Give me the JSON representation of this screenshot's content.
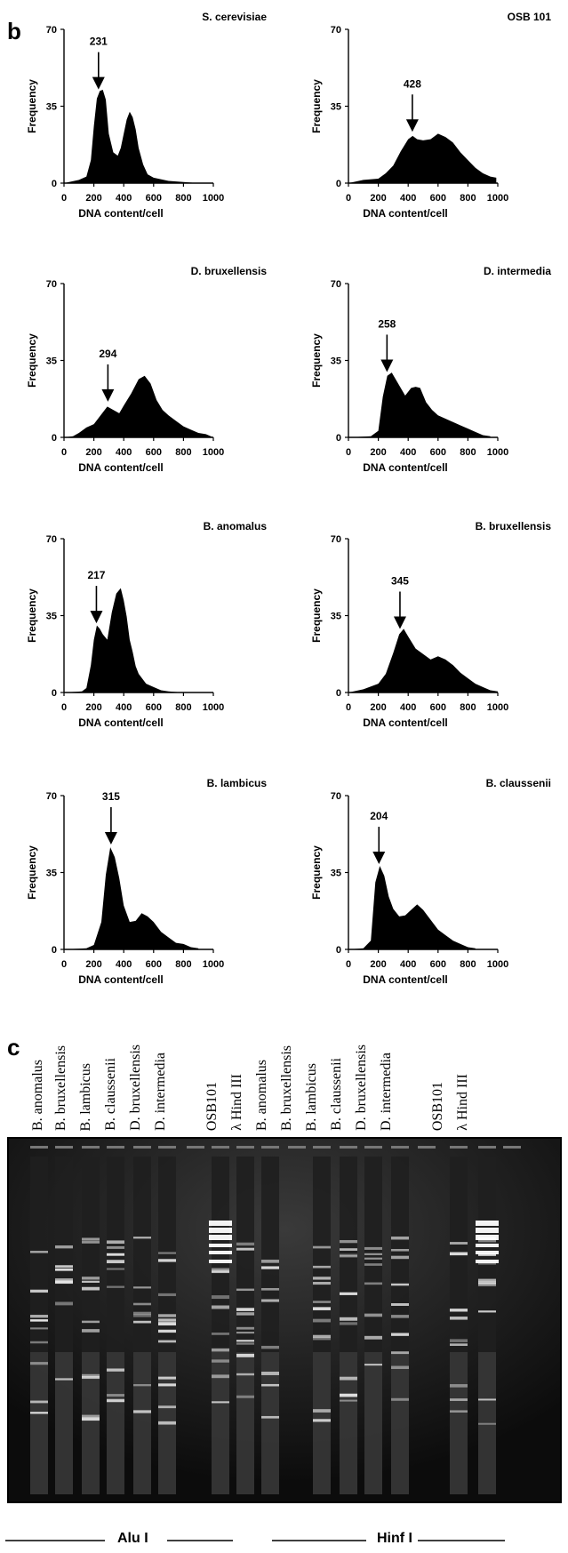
{
  "panel_b_label": "b",
  "panel_c_label": "c",
  "hist_axes": {
    "ylabel": "Frequency",
    "xlabel": "DNA content/cell",
    "y_ticks": [
      "0",
      "35",
      "70"
    ],
    "x_ticks": [
      "0",
      "200",
      "400",
      "600",
      "800",
      "1000"
    ]
  },
  "chart_data": [
    {
      "type": "bar",
      "title": "S. cerevisiae",
      "peak_label": "231",
      "peak_x": 231,
      "xlim": [
        0,
        1000
      ],
      "ylim": [
        0,
        70
      ],
      "x": [
        0,
        100,
        150,
        180,
        200,
        220,
        240,
        260,
        280,
        300,
        330,
        360,
        380,
        400,
        420,
        440,
        460,
        480,
        500,
        530,
        560,
        600,
        700,
        800,
        900
      ],
      "y": [
        0,
        1,
        3,
        10,
        26,
        38,
        42,
        42,
        38,
        22,
        14,
        12,
        16,
        22,
        29,
        32,
        30,
        24,
        16,
        8,
        4,
        2,
        1,
        0,
        0
      ]
    },
    {
      "type": "bar",
      "title": "OSB 101",
      "peak_label": "428",
      "peak_x": 428,
      "xlim": [
        0,
        1000
      ],
      "ylim": [
        0,
        70
      ],
      "x": [
        0,
        100,
        200,
        250,
        300,
        350,
        400,
        430,
        460,
        500,
        550,
        600,
        650,
        700,
        750,
        800,
        850,
        900,
        950,
        990
      ],
      "y": [
        0,
        1,
        2,
        4,
        8,
        14,
        20,
        21,
        20,
        19,
        20,
        22,
        21,
        18,
        14,
        10,
        7,
        4,
        3,
        2
      ]
    },
    {
      "type": "bar",
      "title": "D. bruxellensis",
      "peak_label": "294",
      "peak_x": 294,
      "xlim": [
        0,
        1000
      ],
      "ylim": [
        0,
        70
      ],
      "x": [
        0,
        60,
        100,
        150,
        200,
        250,
        290,
        330,
        370,
        400,
        450,
        500,
        540,
        580,
        620,
        660,
        700,
        750,
        800,
        850,
        900,
        950,
        1000
      ],
      "y": [
        0,
        0,
        2,
        4,
        6,
        10,
        14,
        12,
        11,
        14,
        20,
        26,
        28,
        24,
        17,
        12,
        10,
        7,
        5,
        3,
        2,
        1,
        0
      ]
    },
    {
      "type": "bar",
      "title": "D. intermedia",
      "peak_label": "258",
      "peak_x": 258,
      "xlim": [
        0,
        1000
      ],
      "ylim": [
        0,
        70
      ],
      "x": [
        0,
        150,
        200,
        230,
        260,
        290,
        320,
        350,
        380,
        420,
        450,
        480,
        520,
        560,
        600,
        650,
        700,
        750,
        800,
        850,
        900,
        950
      ],
      "y": [
        0,
        0,
        3,
        18,
        28,
        29,
        26,
        22,
        19,
        22,
        23,
        22,
        16,
        12,
        10,
        8,
        7,
        5,
        4,
        2,
        1,
        0
      ]
    },
    {
      "type": "bar",
      "title": "B. anomalus",
      "peak_label": "217",
      "peak_x": 217,
      "xlim": [
        0,
        1000
      ],
      "ylim": [
        0,
        70
      ],
      "x": [
        0,
        120,
        150,
        180,
        200,
        220,
        240,
        260,
        290,
        320,
        350,
        380,
        400,
        420,
        440,
        460,
        480,
        500,
        550,
        600,
        650,
        700,
        800
      ],
      "y": [
        0,
        0,
        2,
        12,
        24,
        30,
        29,
        26,
        24,
        36,
        45,
        47,
        42,
        34,
        24,
        18,
        12,
        8,
        4,
        2,
        1,
        0,
        0
      ]
    },
    {
      "type": "bar",
      "title": "B. bruxellensis",
      "peak_label": "345",
      "peak_x": 345,
      "xlim": [
        0,
        1000
      ],
      "ylim": [
        0,
        70
      ],
      "x": [
        0,
        100,
        200,
        250,
        300,
        340,
        370,
        400,
        450,
        500,
        550,
        600,
        650,
        700,
        750,
        800,
        850,
        900,
        950,
        1000
      ],
      "y": [
        0,
        1,
        4,
        8,
        18,
        26,
        29,
        25,
        20,
        17,
        15,
        16,
        15,
        12,
        9,
        6,
        4,
        2,
        1,
        0
      ]
    },
    {
      "type": "bar",
      "title": "B. lambicus",
      "peak_label": "315",
      "peak_x": 315,
      "xlim": [
        0,
        1000
      ],
      "ylim": [
        0,
        70
      ],
      "x": [
        0,
        150,
        200,
        250,
        280,
        310,
        340,
        370,
        400,
        440,
        480,
        520,
        560,
        600,
        650,
        700,
        750,
        800,
        850,
        900
      ],
      "y": [
        0,
        0,
        2,
        12,
        34,
        46,
        42,
        32,
        20,
        12,
        13,
        16,
        15,
        12,
        8,
        5,
        3,
        2,
        1,
        0
      ]
    },
    {
      "type": "bar",
      "title": "B. claussenii",
      "peak_label": "204",
      "peak_x": 204,
      "xlim": [
        0,
        1000
      ],
      "ylim": [
        0,
        70
      ],
      "x": [
        0,
        100,
        150,
        180,
        210,
        240,
        270,
        300,
        340,
        380,
        420,
        460,
        500,
        550,
        600,
        650,
        700,
        750,
        800,
        850
      ],
      "y": [
        0,
        0,
        4,
        30,
        38,
        33,
        24,
        18,
        15,
        15,
        18,
        20,
        18,
        13,
        9,
        6,
        4,
        2,
        1,
        0
      ]
    }
  ],
  "gel_lanes": [
    "B. anomalus",
    "B. bruxellensis",
    "B. lambicus",
    "B. claussenii",
    "D. bruxellensis",
    "D. intermedia",
    "OSB101",
    "λ Hind III",
    "B. anomalus",
    "B. bruxellensis",
    "B. lambicus",
    "B. claussenii",
    "D. bruxellensis",
    "D. intermedia",
    "OSB101",
    "λ Hind III"
  ],
  "enzymes": [
    "Alu I",
    "Hinf I"
  ]
}
